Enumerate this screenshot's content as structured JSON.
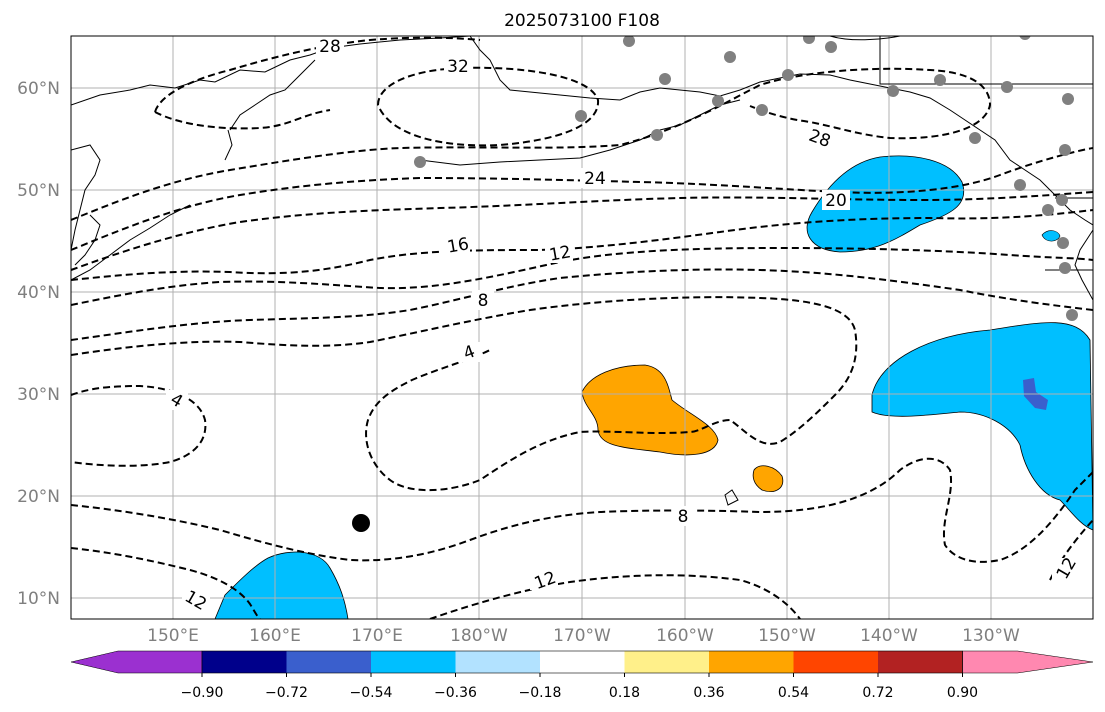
{
  "title": "2025073100 F108",
  "lat_labels": [
    "60°N",
    "50°N",
    "40°N",
    "30°N",
    "20°N",
    "10°N"
  ],
  "lon_labels": [
    "150°E",
    "160°E",
    "170°E",
    "180°W",
    "170°W",
    "160°W",
    "150°W",
    "140°W",
    "130°W"
  ],
  "colorbar": {
    "tick_labels": [
      "−0.90",
      "−0.72",
      "−0.54",
      "−0.36",
      "−0.18",
      "0.18",
      "0.36",
      "0.54",
      "0.72",
      "0.90"
    ],
    "colors": [
      "#9b30d0",
      "#00008b",
      "#3a5fcd",
      "#00bfff",
      "#b2e2ff",
      "#ffffff",
      "#fff08a",
      "#ffa500",
      "#ff4500",
      "#b22222",
      "#ff88b0"
    ]
  },
  "contour_labels": [
    "28",
    "32",
    "24",
    "28",
    "20",
    "16",
    "12",
    "8",
    "4",
    "4",
    "8",
    "12",
    "12",
    "12"
  ],
  "marker_color_dots": "#808080"
}
